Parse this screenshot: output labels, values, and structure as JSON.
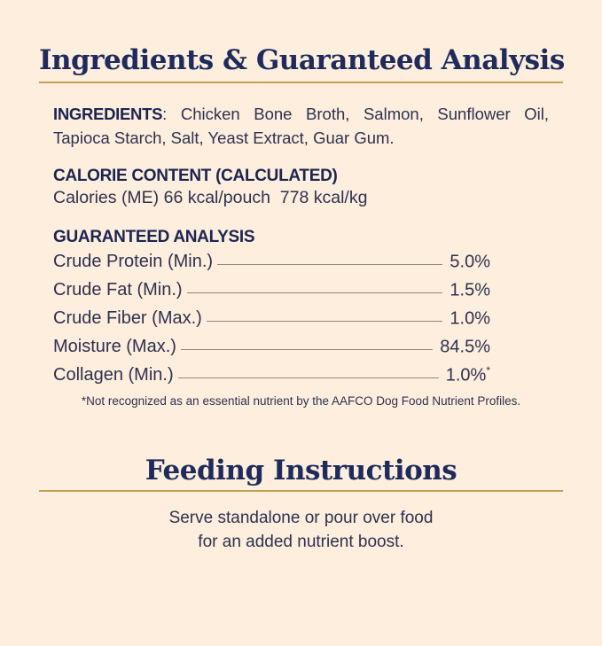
{
  "theme": {
    "background": "#fdeedd",
    "serif_title_navy": "#1e2b5c",
    "heading_navy": "#1b2551",
    "body_navy": "#2e3150",
    "gold_rule": "#c9a053",
    "leader_line_gray": "#8f887d"
  },
  "ingredients_section": {
    "title": "Ingredients & Guaranteed Analysis",
    "ingredients_label": "INGREDIENTS",
    "ingredients_text": ": Chicken Bone Broth, Salmon, Sunflower Oil, Tapioca Starch, Salt, Yeast Extract, Guar Gum.",
    "calorie_heading": "CALORIE CONTENT (CALCULATED)",
    "calorie_text": "Calories (ME) 66 kcal/pouch  778 kcal/kg",
    "analysis_heading": "GUARANTEED ANALYSIS",
    "analysis_rows": [
      {
        "label": "Crude Protein (Min.)",
        "value": "5.0%",
        "sup": ""
      },
      {
        "label": "Crude Fat (Min.)",
        "value": "1.5%",
        "sup": ""
      },
      {
        "label": "Crude Fiber (Max.)",
        "value": "1.0%",
        "sup": ""
      },
      {
        "label": "Moisture (Max.)",
        "value": "84.5%",
        "sup": ""
      },
      {
        "label": "Collagen (Min.)",
        "value": "1.0%",
        "sup": "*"
      }
    ],
    "footnote": "*Not recognized as an essential nutrient by the AAFCO Dog Food Nutrient Profiles."
  },
  "feeding_section": {
    "title": "Feeding Instructions",
    "line1": "Serve standalone or pour over food",
    "line2": "for an added nutrient boost."
  }
}
